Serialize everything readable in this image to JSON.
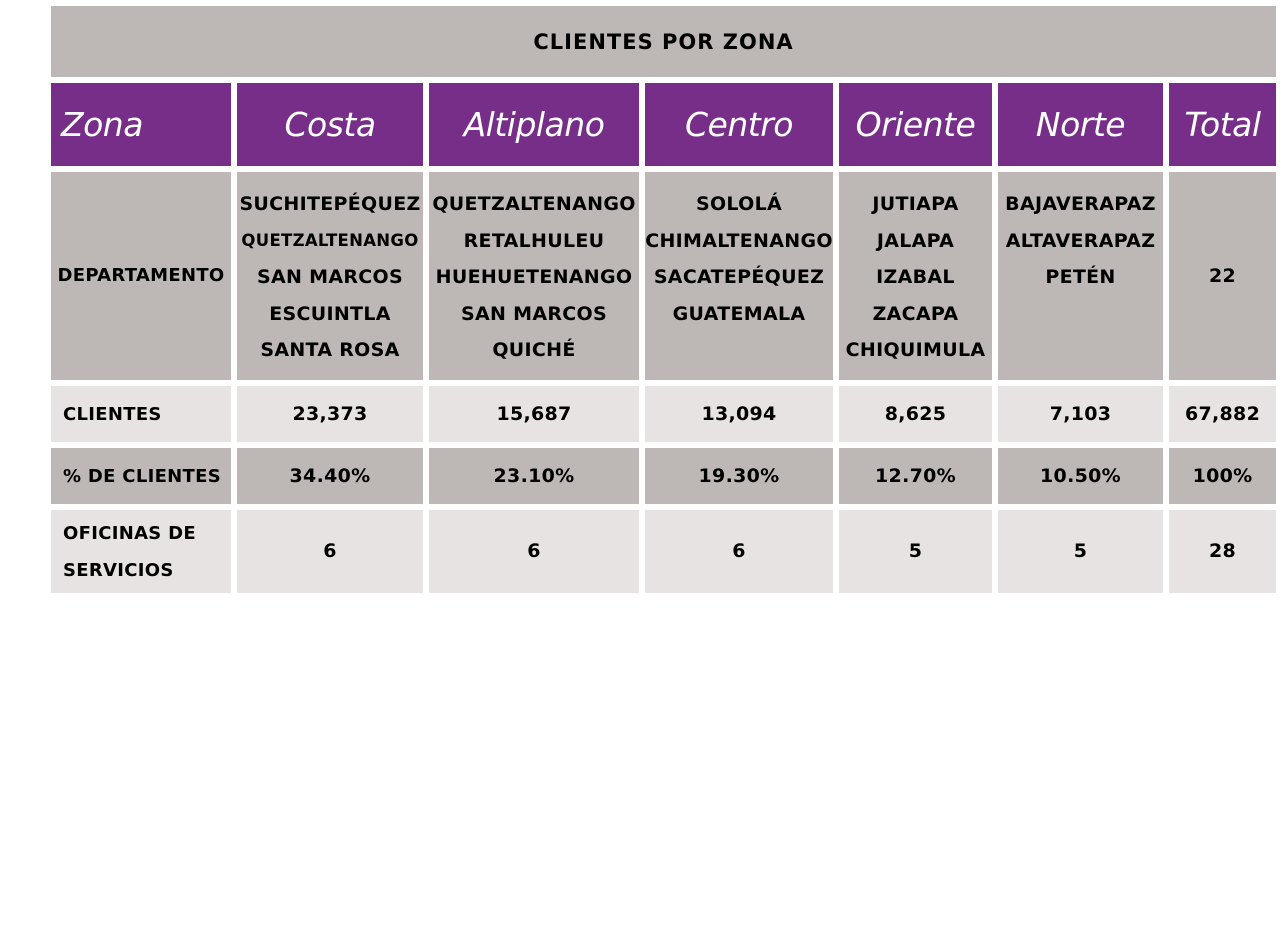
{
  "title": "CLIENTES POR ZONA",
  "header": [
    "Zona",
    "Costa",
    "Altiplano",
    "Centro",
    "Oriente",
    "Norte",
    "Total"
  ],
  "departamento": {
    "label": "DEPARTAMENTO",
    "costa": [
      "SUCHITEPÉQUEZ",
      "QUETZALTENANGO",
      "SAN MARCOS",
      "ESCUINTLA",
      "SANTA ROSA"
    ],
    "altiplano": [
      "QUETZALTENANGO",
      "RETALHULEU",
      "HUEHUETENANGO",
      "SAN MARCOS",
      "QUICHÉ"
    ],
    "centro": [
      "SOLOLÁ",
      "CHIMALTENANGO",
      "SACATEPÉQUEZ",
      "GUATEMALA"
    ],
    "oriente": [
      "JUTIAPA",
      "JALAPA",
      "IZABAL",
      "ZACAPA",
      "CHIQUIMULA"
    ],
    "norte": [
      "BAJAVERAPAZ",
      "ALTAVERAPAZ",
      "PETÉN"
    ],
    "total": "22"
  },
  "clientes": {
    "label": "CLIENTES",
    "values": [
      "23,373",
      "15,687",
      "13,094",
      "8,625",
      "7,103",
      "67,882"
    ]
  },
  "porcentaje": {
    "label": "% DE CLIENTES",
    "values": [
      "34.40%",
      "23.10%",
      "19.30%",
      "12.70%",
      "10.50%",
      "100%"
    ]
  },
  "oficinas": {
    "label_line1": "OFICINAS DE",
    "label_line2": "SERVICIOS",
    "values": [
      "6",
      "6",
      "6",
      "5",
      "5",
      "28"
    ]
  },
  "colors": {
    "header_purple": "#772e88",
    "gray_dark": "#bdb8b6",
    "gray_light": "#e6e3e2"
  }
}
